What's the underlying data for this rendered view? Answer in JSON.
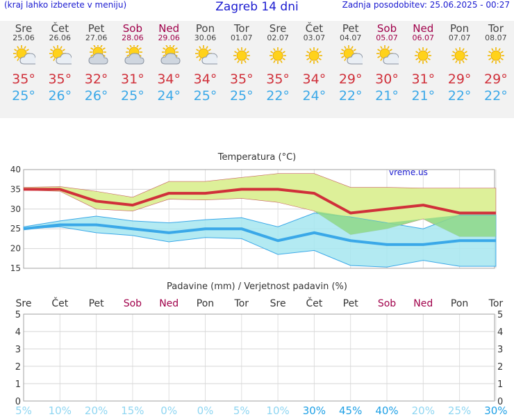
{
  "header": {
    "hint": "(kraj lahko izberete v meniju)",
    "title": "Zagreb 14 dni",
    "updated": "Zadnja posodobitev: 25.06.2025 - 00:27"
  },
  "days": [
    {
      "name": "Sre",
      "date": "25.06",
      "weekend": false,
      "icon": "sun-cloud-icon",
      "max": "35°",
      "min": "25°"
    },
    {
      "name": "Čet",
      "date": "26.06",
      "weekend": false,
      "icon": "sun-cloud-icon",
      "max": "35°",
      "min": "26°"
    },
    {
      "name": "Pet",
      "date": "27.06",
      "weekend": false,
      "icon": "cloud-sun-icon",
      "max": "32°",
      "min": "26°"
    },
    {
      "name": "Sob",
      "date": "28.06",
      "weekend": true,
      "icon": "cloud-sun-icon",
      "max": "31°",
      "min": "25°"
    },
    {
      "name": "Ned",
      "date": "29.06",
      "weekend": true,
      "icon": "cloud-sun-icon",
      "max": "34°",
      "min": "24°"
    },
    {
      "name": "Pon",
      "date": "30.06",
      "weekend": false,
      "icon": "sun-cloud-icon",
      "max": "34°",
      "min": "25°"
    },
    {
      "name": "Tor",
      "date": "01.07",
      "weekend": false,
      "icon": "sun-icon",
      "max": "35°",
      "min": "25°"
    },
    {
      "name": "Sre",
      "date": "02.07",
      "weekend": false,
      "icon": "sun-icon",
      "max": "35°",
      "min": "22°"
    },
    {
      "name": "Čet",
      "date": "03.07",
      "weekend": false,
      "icon": "sun-icon",
      "max": "34°",
      "min": "24°"
    },
    {
      "name": "Pet",
      "date": "04.07",
      "weekend": false,
      "icon": "sun-cloud-icon",
      "max": "29°",
      "min": "22°"
    },
    {
      "name": "Sob",
      "date": "05.07",
      "weekend": true,
      "icon": "sun-cloud-icon",
      "max": "30°",
      "min": "21°"
    },
    {
      "name": "Ned",
      "date": "06.07",
      "weekend": true,
      "icon": "sun-icon",
      "max": "31°",
      "min": "21°"
    },
    {
      "name": "Pon",
      "date": "07.07",
      "weekend": false,
      "icon": "sun-icon",
      "max": "29°",
      "min": "22°"
    },
    {
      "name": "Tor",
      "date": "08.07",
      "weekend": false,
      "icon": "sun-icon",
      "max": "29°",
      "min": "22°"
    }
  ],
  "colors": {
    "max": "#d0303a",
    "min": "#3aa8e8",
    "weekend": "#a0004a",
    "upperBand": "#ddf099",
    "lowerBand": "#a6e6f0",
    "overlap": "#8fd88a"
  },
  "chart_data": [
    {
      "type": "line",
      "title": "Temperatura (°C)",
      "watermark": "vreme.us",
      "ylim": [
        15,
        40
      ],
      "yticks": [
        "15",
        "20",
        "25",
        "30",
        "35",
        "40"
      ],
      "categories": [
        "25.06",
        "26.06",
        "27.06",
        "28.06",
        "29.06",
        "30.06",
        "01.07",
        "02.07",
        "03.07",
        "04.07",
        "05.07",
        "06.07",
        "07.07",
        "08.07"
      ],
      "series": [
        {
          "values": [
            35,
            35,
            32,
            31,
            34,
            34,
            35,
            35,
            34,
            29,
            30,
            31,
            29,
            29
          ]
        },
        {
          "values": [
            25,
            26,
            26,
            25,
            24,
            25,
            25,
            22,
            24,
            22,
            21,
            21,
            22,
            22
          ]
        }
      ],
      "maxBand": {
        "upper": [
          35.5,
          35.7,
          34.5,
          33,
          37,
          37,
          38,
          39,
          39,
          35.5,
          35.5,
          35.3,
          35.3,
          35.3
        ],
        "lower": [
          34.8,
          34.5,
          30,
          29.5,
          32.5,
          32.3,
          32.7,
          31.7,
          29.5,
          23.5,
          25,
          27.5,
          23,
          23
        ]
      },
      "minBand": {
        "upper": [
          25.5,
          27,
          28.2,
          27,
          26.5,
          27.3,
          27.8,
          25.5,
          29,
          28,
          26.5,
          25,
          28.5,
          28.5
        ],
        "lower": [
          25,
          25.5,
          24,
          23.3,
          21.7,
          22.8,
          22.5,
          18.5,
          19.5,
          15.7,
          15.3,
          17,
          15.5,
          15.5
        ]
      }
    },
    {
      "type": "bar",
      "title": "Padavine (mm) / Verjetnost padavin (%)",
      "ylim": [
        0,
        5
      ],
      "yticks": [
        "0",
        "1",
        "2",
        "3",
        "4",
        "5"
      ],
      "days": [
        "Sre",
        "Čet",
        "Pet",
        "Sob",
        "Ned",
        "Pon",
        "Tor",
        "Sre",
        "Čet",
        "Pet",
        "Sob",
        "Ned",
        "Pon",
        "Tor"
      ],
      "values": [
        0,
        0,
        0,
        0,
        0,
        0,
        0,
        0,
        0,
        0,
        0,
        0,
        0,
        0
      ],
      "probabilities": [
        "5%",
        "10%",
        "20%",
        "15%",
        "0%",
        "0%",
        "5%",
        "10%",
        "30%",
        "45%",
        "40%",
        "20%",
        "25%",
        "30%"
      ],
      "probValues": [
        5,
        10,
        20,
        15,
        0,
        0,
        5,
        10,
        30,
        45,
        40,
        20,
        25,
        30
      ]
    }
  ]
}
